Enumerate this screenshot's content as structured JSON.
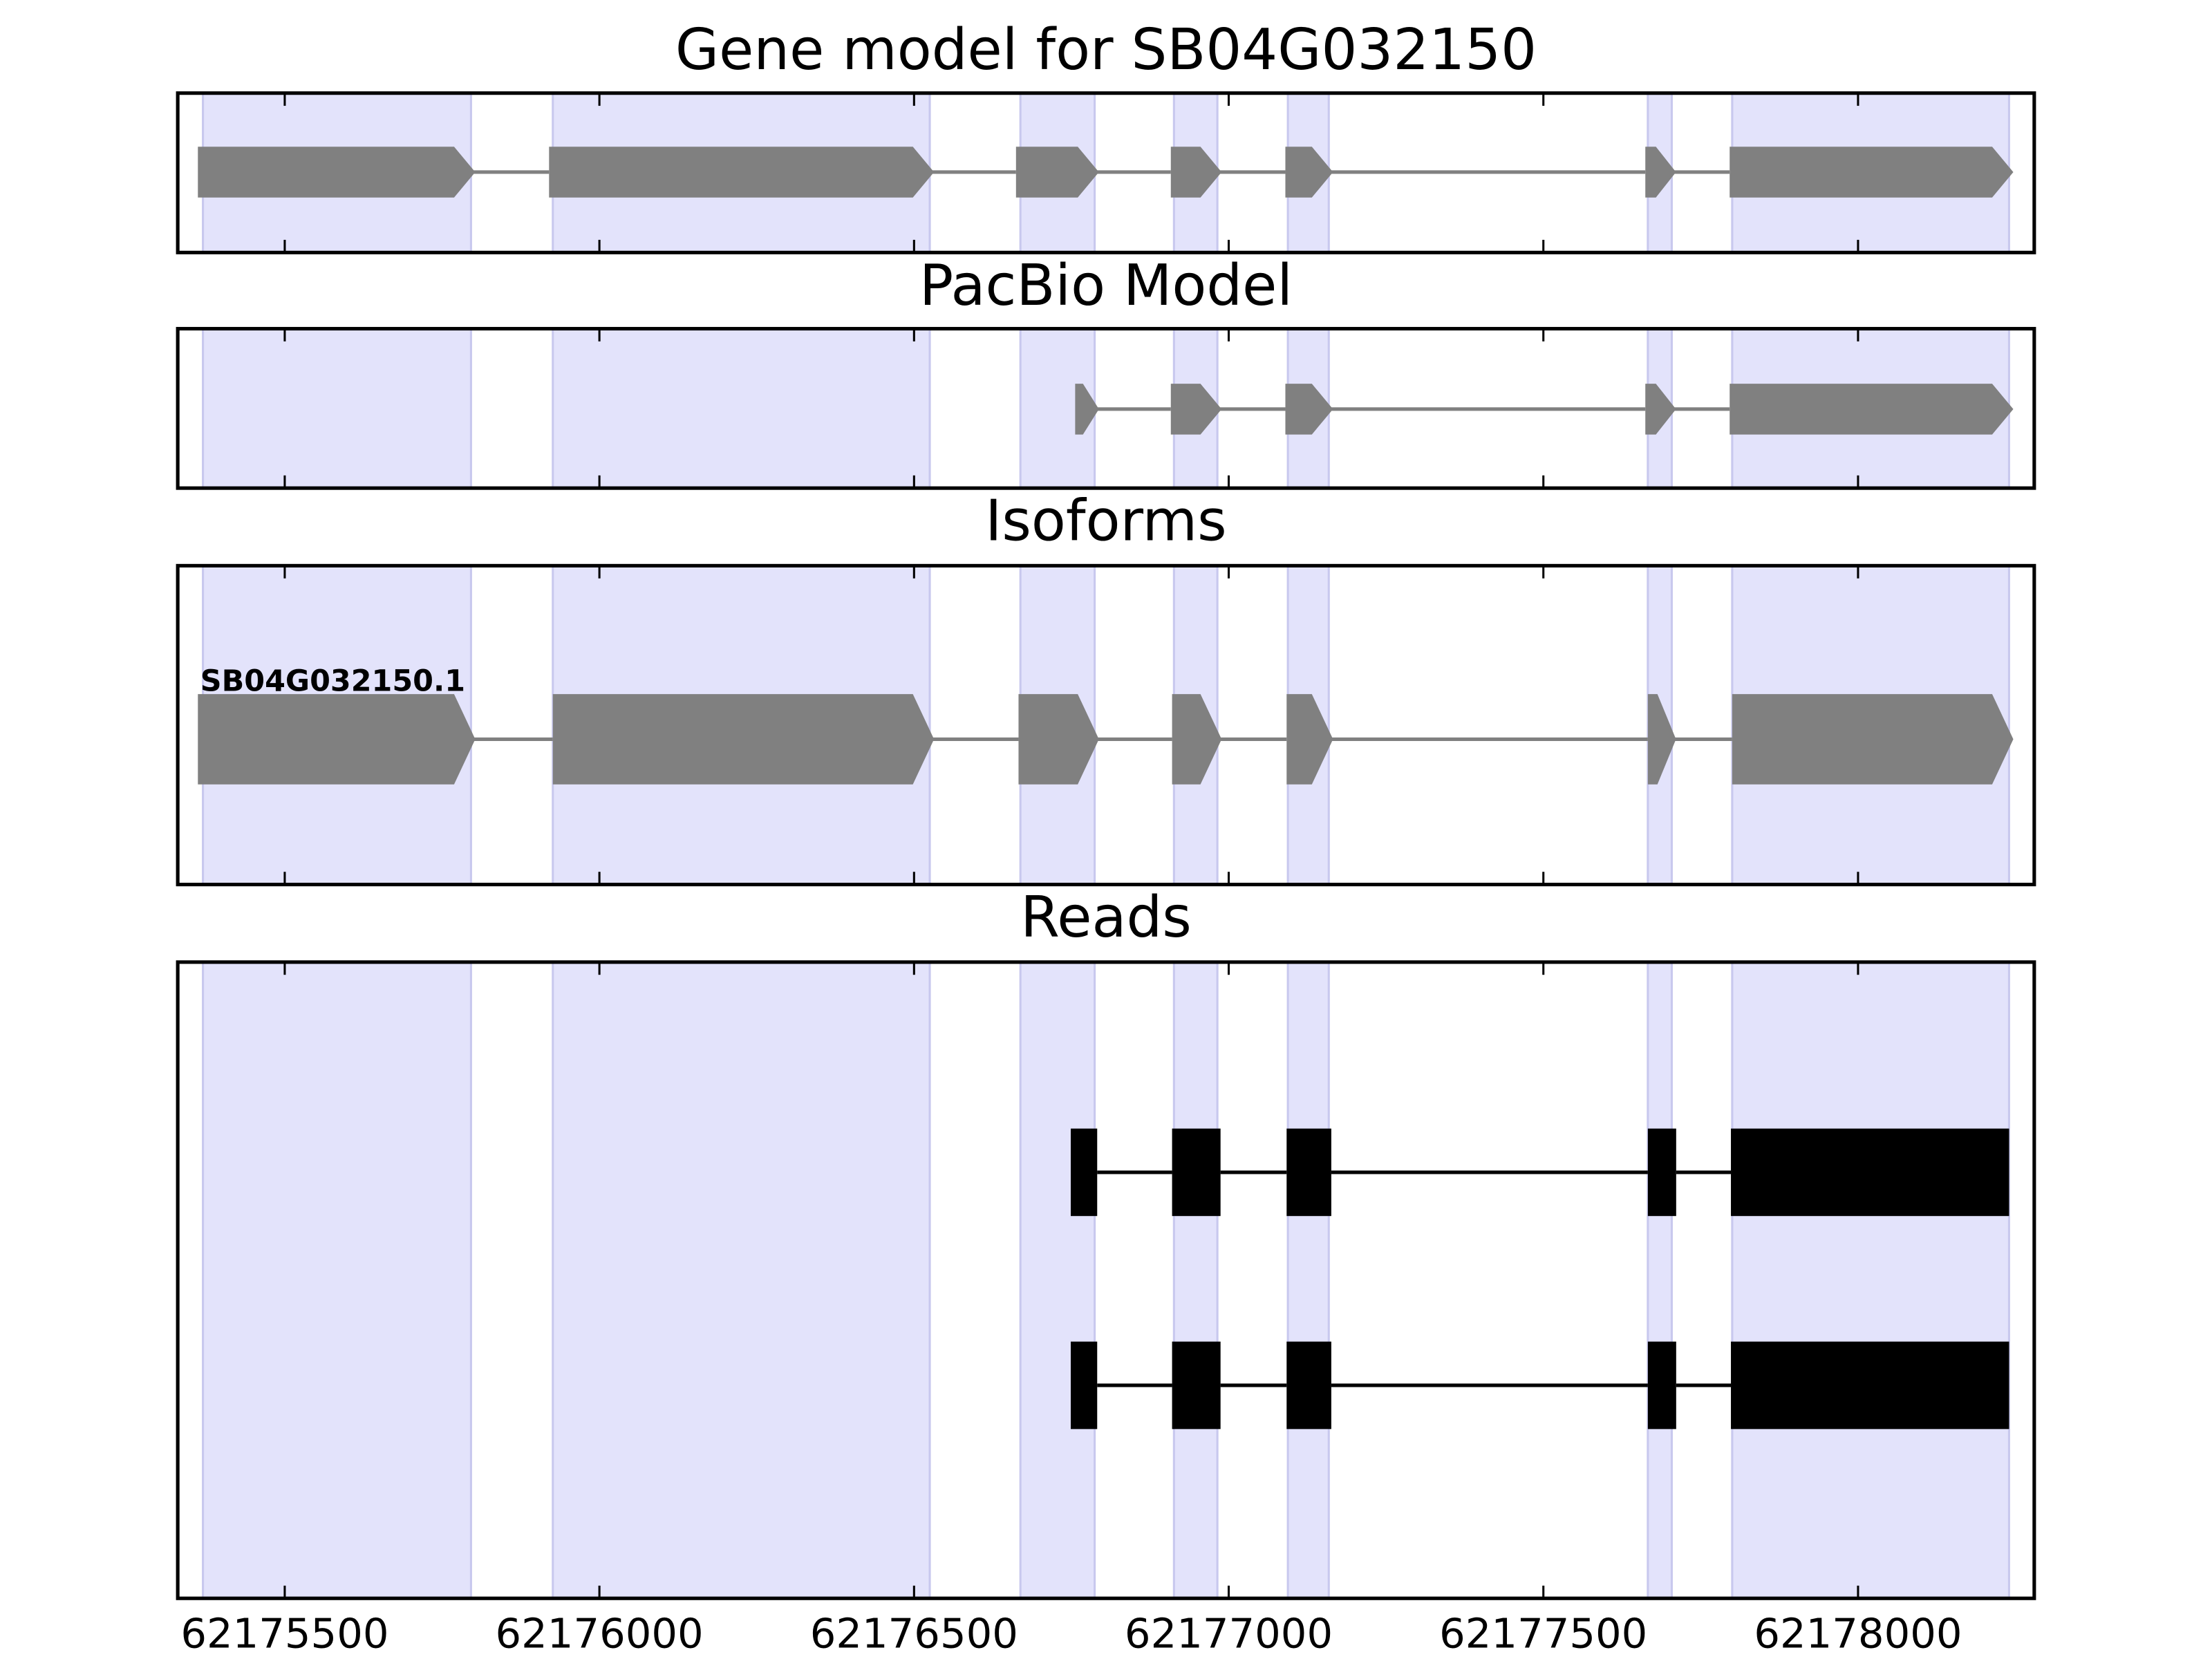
{
  "chart_data": [
    {
      "type": "gene",
      "title": "Gene model for SB04G032150",
      "color": "#808080",
      "highlight_color": "#e3e3fb",
      "xlim": [
        62175330,
        62178280
      ],
      "xticks": [
        62175500,
        62176000,
        62176500,
        62177000,
        62177500,
        62178000
      ],
      "highlights": [
        [
          62175370,
          62175796
        ],
        [
          62175926,
          62176525
        ],
        [
          62176669,
          62176787
        ],
        [
          62176913,
          62176982
        ],
        [
          62177094,
          62177159
        ],
        [
          62177666,
          62177704
        ],
        [
          62177800,
          62178240
        ]
      ],
      "exons": [
        [
          62175362,
          62175796
        ],
        [
          62175920,
          62176525
        ],
        [
          62176662,
          62176787
        ],
        [
          62176908,
          62176982
        ],
        [
          62177090,
          62177159
        ],
        [
          62177662,
          62177704
        ],
        [
          62177796,
          62178240
        ]
      ]
    },
    {
      "type": "gene",
      "title": "PacBio Model",
      "color": "#808080",
      "highlight_color": "#e3e3fb",
      "xlim": [
        62175330,
        62178280
      ],
      "xticks": [
        62175500,
        62176000,
        62176500,
        62177000,
        62177500,
        62178000
      ],
      "highlights": [
        [
          62175370,
          62175796
        ],
        [
          62175926,
          62176525
        ],
        [
          62176669,
          62176787
        ],
        [
          62176913,
          62176982
        ],
        [
          62177094,
          62177159
        ],
        [
          62177666,
          62177704
        ],
        [
          62177800,
          62178240
        ]
      ],
      "exons": [
        [
          62176756,
          62176787
        ],
        [
          62176908,
          62176982
        ],
        [
          62177090,
          62177159
        ],
        [
          62177662,
          62177704
        ],
        [
          62177796,
          62178240
        ]
      ]
    },
    {
      "type": "isoforms",
      "title": "Isoforms",
      "color": "#808080",
      "highlight_color": "#e3e3fb",
      "xlim": [
        62175330,
        62178280
      ],
      "xticks": [
        62175500,
        62176000,
        62176500,
        62177000,
        62177500,
        62178000
      ],
      "highlights": [
        [
          62175370,
          62175796
        ],
        [
          62175926,
          62176525
        ],
        [
          62176669,
          62176787
        ],
        [
          62176913,
          62176982
        ],
        [
          62177094,
          62177159
        ],
        [
          62177666,
          62177704
        ],
        [
          62177800,
          62178240
        ]
      ],
      "isoforms": [
        {
          "name": "SB04G032150.1",
          "exons": [
            [
              62175362,
              62175796
            ],
            [
              62175926,
              62176525
            ],
            [
              62176666,
              62176787
            ],
            [
              62176910,
              62176982
            ],
            [
              62177092,
              62177159
            ],
            [
              62177666,
              62177704
            ],
            [
              62177800,
              62178240
            ]
          ]
        }
      ]
    },
    {
      "type": "reads",
      "title": "Reads",
      "color": "#000000",
      "highlight_color": "#e3e3fb",
      "xlim": [
        62175330,
        62178280
      ],
      "xticks": [
        62175500,
        62176000,
        62176500,
        62177000,
        62177500,
        62178000
      ],
      "highlights": [
        [
          62175370,
          62175796
        ],
        [
          62175926,
          62176525
        ],
        [
          62176669,
          62176787
        ],
        [
          62176913,
          62176982
        ],
        [
          62177094,
          62177159
        ],
        [
          62177666,
          62177704
        ],
        [
          62177800,
          62178240
        ]
      ],
      "reads": [
        {
          "exons": [
            [
              62176749,
              62176791
            ],
            [
              62176910,
              62176987
            ],
            [
              62177092,
              62177163
            ],
            [
              62177666,
              62177711
            ],
            [
              62177798,
              62178240
            ]
          ]
        },
        {
          "exons": [
            [
              62176749,
              62176791
            ],
            [
              62176910,
              62176987
            ],
            [
              62177092,
              62177163
            ],
            [
              62177666,
              62177711
            ],
            [
              62177798,
              62178240
            ]
          ]
        }
      ]
    }
  ]
}
